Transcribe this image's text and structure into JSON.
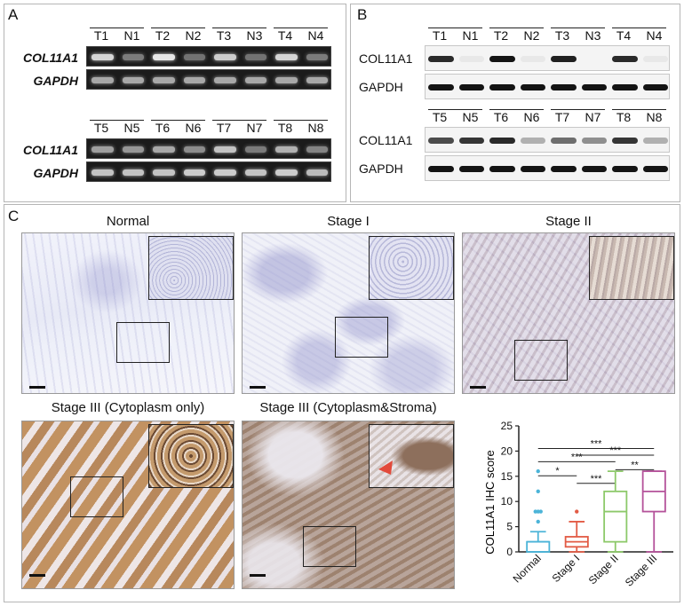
{
  "panels": {
    "A": {
      "letter": "A",
      "gel_top": {
        "lanes": [
          "T1",
          "N1",
          "T2",
          "N2",
          "T3",
          "N3",
          "T4",
          "N4"
        ],
        "rows": [
          "COL11A1",
          "GAPDH"
        ],
        "col11a1_intensity": [
          0.85,
          0.35,
          0.95,
          0.3,
          0.8,
          0.3,
          0.85,
          0.35
        ],
        "gapdh_intensity": [
          0.6,
          0.6,
          0.6,
          0.6,
          0.6,
          0.6,
          0.6,
          0.6
        ]
      },
      "gel_bottom": {
        "lanes": [
          "T5",
          "N5",
          "T6",
          "N6",
          "T7",
          "N7",
          "T8",
          "N8"
        ],
        "rows": [
          "COL11A1",
          "GAPDH"
        ],
        "col11a1_intensity": [
          0.55,
          0.5,
          0.6,
          0.45,
          0.75,
          0.35,
          0.65,
          0.4
        ],
        "gapdh_intensity": [
          0.75,
          0.75,
          0.75,
          0.8,
          0.8,
          0.75,
          0.8,
          0.7
        ]
      }
    },
    "B": {
      "letter": "B",
      "blot_top": {
        "lanes": [
          "T1",
          "N1",
          "T2",
          "N2",
          "T3",
          "N3",
          "T4",
          "N4"
        ],
        "rows": [
          "COL11A1",
          "GAPDH"
        ],
        "col11a1_intensity": [
          0.9,
          0.05,
          1.0,
          0.05,
          0.95,
          0.0,
          0.9,
          0.05
        ],
        "gapdh_intensity": [
          1,
          1,
          1,
          1,
          1,
          1,
          1,
          1
        ]
      },
      "blot_bottom": {
        "lanes": [
          "T5",
          "N5",
          "T6",
          "N6",
          "T7",
          "N7",
          "T8",
          "N8"
        ],
        "rows": [
          "COL11A1",
          "GAPDH"
        ],
        "col11a1_intensity": [
          0.75,
          0.85,
          0.9,
          0.3,
          0.6,
          0.45,
          0.85,
          0.3
        ],
        "gapdh_intensity": [
          1,
          1,
          1,
          1,
          1,
          1,
          1,
          1
        ]
      }
    },
    "C": {
      "letter": "C",
      "images": [
        {
          "title": "Normal",
          "stain": "weak"
        },
        {
          "title": "Stage I",
          "stain": "weak"
        },
        {
          "title": "Stage II",
          "stain": "moderate"
        },
        {
          "title": "Stage III (Cytoplasm only)",
          "stain": "strong"
        },
        {
          "title": "Stage III (Cytoplasm&Stroma)",
          "stain": "strong-stroma"
        }
      ]
    }
  },
  "chart_data": {
    "type": "box",
    "ylabel": "COL11A1 IHC score",
    "ylim": [
      0,
      25
    ],
    "yticks": [
      "0",
      "5",
      "10",
      "15",
      "20",
      "25"
    ],
    "categories": [
      "Normal",
      "Stage I",
      "Stage II",
      "Stage III"
    ],
    "colors": [
      "#4cb4d8",
      "#e25b45",
      "#8dc96a",
      "#b4529a"
    ],
    "boxes": [
      {
        "whisker_low": 0,
        "q1": 0,
        "median": 2,
        "q3": 2,
        "whisker_high": 4,
        "outliers": [
          6,
          8,
          8,
          8,
          12,
          16
        ]
      },
      {
        "whisker_low": 0,
        "q1": 1,
        "median": 2,
        "q3": 3,
        "whisker_high": 6,
        "outliers": [
          8
        ]
      },
      {
        "whisker_low": 0,
        "q1": 2,
        "median": 8,
        "q3": 12,
        "whisker_high": 16,
        "outliers": []
      },
      {
        "whisker_low": 0,
        "q1": 8,
        "median": 12,
        "q3": 16,
        "whisker_high": 16,
        "outliers": []
      }
    ],
    "significance": [
      {
        "from": 0,
        "to": 3,
        "label": "***"
      },
      {
        "from": 1,
        "to": 3,
        "label": "***"
      },
      {
        "from": 0,
        "to": 2,
        "label": "***"
      },
      {
        "from": 2,
        "to": 3,
        "label": "**"
      },
      {
        "from": 0,
        "to": 1,
        "label": "*"
      },
      {
        "from": 1,
        "to": 2,
        "label": "***"
      }
    ]
  }
}
